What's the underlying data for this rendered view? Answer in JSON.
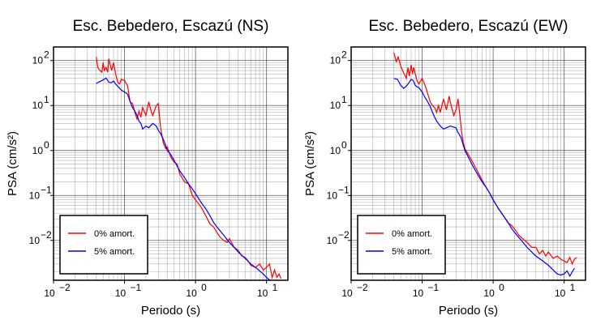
{
  "chart_data": [
    {
      "type": "line",
      "title": "Esc. Bebedero, Escazú (NS)",
      "xlabel": "Periodo (s)",
      "ylabel": "PSA (cm/s²)",
      "xscale": "log",
      "yscale": "log",
      "xlim": [
        0.01,
        20
      ],
      "ylim": [
        0.0013,
        200
      ],
      "grid": true,
      "legend": {
        "placement": "lower-left",
        "entries": [
          "0% amort.",
          "5% amort."
        ]
      },
      "x_ticks": [
        "10",
        "10",
        "10",
        "10"
      ],
      "x_tick_exponents": [
        "−2",
        "−1",
        "0",
        "1"
      ],
      "y_ticks": [
        "10",
        "10",
        "10",
        "10",
        "10"
      ],
      "y_tick_exponents": [
        "−2",
        "−1",
        "0",
        "1",
        "2"
      ],
      "series": [
        {
          "name": "0% amort.",
          "color": "#ff0000",
          "points": [
            [
              0.04,
              120
            ],
            [
              0.042,
              70
            ],
            [
              0.045,
              60
            ],
            [
              0.048,
              55
            ],
            [
              0.05,
              90
            ],
            [
              0.052,
              60
            ],
            [
              0.055,
              70
            ],
            [
              0.058,
              55
            ],
            [
              0.06,
              110
            ],
            [
              0.063,
              80
            ],
            [
              0.066,
              60
            ],
            [
              0.07,
              90
            ],
            [
              0.075,
              50
            ],
            [
              0.08,
              33
            ],
            [
              0.085,
              30
            ],
            [
              0.09,
              38
            ],
            [
              0.1,
              36
            ],
            [
              0.11,
              28
            ],
            [
              0.12,
              12
            ],
            [
              0.13,
              11
            ],
            [
              0.14,
              7
            ],
            [
              0.15,
              5
            ],
            [
              0.16,
              7.5
            ],
            [
              0.17,
              5.5
            ],
            [
              0.18,
              9
            ],
            [
              0.2,
              6
            ],
            [
              0.22,
              12
            ],
            [
              0.24,
              7
            ],
            [
              0.25,
              6
            ],
            [
              0.28,
              10
            ],
            [
              0.3,
              11
            ],
            [
              0.32,
              3.5
            ],
            [
              0.35,
              1.5
            ],
            [
              0.38,
              1.1
            ],
            [
              0.4,
              1.2
            ],
            [
              0.45,
              0.7
            ],
            [
              0.5,
              0.55
            ],
            [
              0.55,
              0.5
            ],
            [
              0.6,
              0.3
            ],
            [
              0.7,
              0.2
            ],
            [
              0.8,
              0.18
            ],
            [
              0.9,
              0.1
            ],
            [
              1.0,
              0.08
            ],
            [
              1.2,
              0.055
            ],
            [
              1.4,
              0.035
            ],
            [
              1.6,
              0.023
            ],
            [
              1.8,
              0.02
            ],
            [
              2.0,
              0.015
            ],
            [
              2.2,
              0.012
            ],
            [
              2.5,
              0.01
            ],
            [
              2.8,
              0.009
            ],
            [
              3.0,
              0.011
            ],
            [
              3.5,
              0.007
            ],
            [
              4.0,
              0.006
            ],
            [
              4.5,
              0.0045
            ],
            [
              5.0,
              0.0042
            ],
            [
              5.5,
              0.0035
            ],
            [
              6.0,
              0.0028
            ],
            [
              7.0,
              0.0025
            ],
            [
              8.0,
              0.003
            ],
            [
              9.0,
              0.0022
            ],
            [
              10.0,
              0.0025
            ],
            [
              11.0,
              0.003
            ],
            [
              12.0,
              0.0015
            ],
            [
              13.0,
              0.0022
            ],
            [
              14.0,
              0.0015
            ],
            [
              15.0,
              0.0018
            ],
            [
              16.0,
              0.0014
            ]
          ]
        },
        {
          "name": "5% amort.",
          "color": "#0000ff",
          "points": [
            [
              0.04,
              31
            ],
            [
              0.045,
              34
            ],
            [
              0.05,
              37
            ],
            [
              0.055,
              41
            ],
            [
              0.06,
              33
            ],
            [
              0.065,
              32
            ],
            [
              0.07,
              35
            ],
            [
              0.075,
              30
            ],
            [
              0.08,
              27
            ],
            [
              0.09,
              22
            ],
            [
              0.1,
              20
            ],
            [
              0.11,
              18
            ],
            [
              0.12,
              12
            ],
            [
              0.13,
              9
            ],
            [
              0.14,
              7.5
            ],
            [
              0.15,
              6
            ],
            [
              0.16,
              4.5
            ],
            [
              0.17,
              4
            ],
            [
              0.18,
              3
            ],
            [
              0.2,
              3.5
            ],
            [
              0.22,
              3.2
            ],
            [
              0.25,
              4
            ],
            [
              0.28,
              3.5
            ],
            [
              0.3,
              2.8
            ],
            [
              0.32,
              2.4
            ],
            [
              0.35,
              1.8
            ],
            [
              0.38,
              1.3
            ],
            [
              0.4,
              1.0
            ],
            [
              0.45,
              0.8
            ],
            [
              0.5,
              0.6
            ],
            [
              0.55,
              0.45
            ],
            [
              0.6,
              0.35
            ],
            [
              0.7,
              0.25
            ],
            [
              0.8,
              0.18
            ],
            [
              0.9,
              0.14
            ],
            [
              1.0,
              0.11
            ],
            [
              1.2,
              0.07
            ],
            [
              1.4,
              0.05
            ],
            [
              1.6,
              0.035
            ],
            [
              1.8,
              0.025
            ],
            [
              2.0,
              0.02
            ],
            [
              2.5,
              0.013
            ],
            [
              3.0,
              0.009
            ],
            [
              3.5,
              0.007
            ],
            [
              4.0,
              0.0055
            ],
            [
              5.0,
              0.004
            ],
            [
              6.0,
              0.003
            ],
            [
              7.0,
              0.0025
            ],
            [
              8.0,
              0.0021
            ],
            [
              9.0,
              0.0018
            ],
            [
              10.0,
              0.0015
            ],
            [
              12.0,
              0.0012
            ],
            [
              14.0,
              0.001
            ]
          ]
        }
      ]
    },
    {
      "type": "line",
      "title": "Esc. Bebedero, Escazú (EW)",
      "xlabel": "Periodo (s)",
      "ylabel": "PSA (cm/s²)",
      "xscale": "log",
      "yscale": "log",
      "xlim": [
        0.01,
        20
      ],
      "ylim": [
        0.0013,
        200
      ],
      "grid": true,
      "legend": {
        "placement": "lower-left",
        "entries": [
          "0% amort.",
          "5% amort."
        ]
      },
      "x_ticks": [
        "10",
        "10",
        "10",
        "10"
      ],
      "x_tick_exponents": [
        "−2",
        "−1",
        "0",
        "1"
      ],
      "y_ticks": [
        "10",
        "10",
        "10",
        "10",
        "10"
      ],
      "y_tick_exponents": [
        "−2",
        "−1",
        "0",
        "1",
        "2"
      ],
      "series": [
        {
          "name": "0% amort.",
          "color": "#ff0000",
          "points": [
            [
              0.04,
              150
            ],
            [
              0.043,
              95
            ],
            [
              0.046,
              120
            ],
            [
              0.05,
              75
            ],
            [
              0.053,
              60
            ],
            [
              0.056,
              50
            ],
            [
              0.06,
              40
            ],
            [
              0.063,
              70
            ],
            [
              0.066,
              45
            ],
            [
              0.07,
              80
            ],
            [
              0.073,
              50
            ],
            [
              0.076,
              70
            ],
            [
              0.08,
              50
            ],
            [
              0.085,
              35
            ],
            [
              0.09,
              30
            ],
            [
              0.1,
              40
            ],
            [
              0.11,
              28
            ],
            [
              0.12,
              18
            ],
            [
              0.13,
              12
            ],
            [
              0.14,
              10
            ],
            [
              0.15,
              9
            ],
            [
              0.16,
              7
            ],
            [
              0.17,
              10
            ],
            [
              0.18,
              7
            ],
            [
              0.2,
              14
            ],
            [
              0.22,
              8
            ],
            [
              0.24,
              16
            ],
            [
              0.26,
              9
            ],
            [
              0.28,
              6
            ],
            [
              0.3,
              8
            ],
            [
              0.32,
              14
            ],
            [
              0.34,
              6
            ],
            [
              0.36,
              2.5
            ],
            [
              0.38,
              1.5
            ],
            [
              0.4,
              1.1
            ],
            [
              0.45,
              0.8
            ],
            [
              0.5,
              0.6
            ],
            [
              0.55,
              0.45
            ],
            [
              0.6,
              0.35
            ],
            [
              0.7,
              0.22
            ],
            [
              0.8,
              0.15
            ],
            [
              0.9,
              0.11
            ],
            [
              1.0,
              0.08
            ],
            [
              1.2,
              0.05
            ],
            [
              1.4,
              0.035
            ],
            [
              1.6,
              0.025
            ],
            [
              1.8,
              0.022
            ],
            [
              2.0,
              0.018
            ],
            [
              2.3,
              0.013
            ],
            [
              2.6,
              0.011
            ],
            [
              3.0,
              0.009
            ],
            [
              3.5,
              0.007
            ],
            [
              4.0,
              0.007
            ],
            [
              4.5,
              0.005
            ],
            [
              5.0,
              0.006
            ],
            [
              5.5,
              0.0045
            ],
            [
              6.0,
              0.0055
            ],
            [
              7.0,
              0.004
            ],
            [
              8.0,
              0.0045
            ],
            [
              9.0,
              0.0038
            ],
            [
              10.0,
              0.0035
            ],
            [
              11.0,
              0.0032
            ],
            [
              12.0,
              0.0042
            ],
            [
              13.0,
              0.003
            ],
            [
              14.0,
              0.0038
            ],
            [
              15.0,
              0.0042
            ]
          ]
        },
        {
          "name": "5% amort.",
          "color": "#0000ff",
          "points": [
            [
              0.04,
              40
            ],
            [
              0.045,
              38
            ],
            [
              0.05,
              28
            ],
            [
              0.055,
              24
            ],
            [
              0.06,
              27
            ],
            [
              0.065,
              32
            ],
            [
              0.07,
              38
            ],
            [
              0.075,
              36
            ],
            [
              0.08,
              28
            ],
            [
              0.085,
              26
            ],
            [
              0.09,
              25
            ],
            [
              0.1,
              20
            ],
            [
              0.11,
              15
            ],
            [
              0.12,
              12
            ],
            [
              0.13,
              9.5
            ],
            [
              0.14,
              7
            ],
            [
              0.15,
              5.5
            ],
            [
              0.16,
              4.5
            ],
            [
              0.18,
              3.5
            ],
            [
              0.2,
              3
            ],
            [
              0.22,
              3.2
            ],
            [
              0.25,
              3.5
            ],
            [
              0.28,
              3.3
            ],
            [
              0.3,
              3.2
            ],
            [
              0.32,
              2.5
            ],
            [
              0.35,
              2
            ],
            [
              0.38,
              1.3
            ],
            [
              0.4,
              1.0
            ],
            [
              0.45,
              0.7
            ],
            [
              0.5,
              0.5
            ],
            [
              0.55,
              0.38
            ],
            [
              0.6,
              0.3
            ],
            [
              0.7,
              0.2
            ],
            [
              0.8,
              0.15
            ],
            [
              0.9,
              0.11
            ],
            [
              1.0,
              0.08
            ],
            [
              1.2,
              0.05
            ],
            [
              1.4,
              0.035
            ],
            [
              1.6,
              0.026
            ],
            [
              1.8,
              0.019
            ],
            [
              2.0,
              0.015
            ],
            [
              2.5,
              0.01
            ],
            [
              3.0,
              0.007
            ],
            [
              3.5,
              0.0055
            ],
            [
              4.0,
              0.0045
            ],
            [
              5.0,
              0.0035
            ],
            [
              6.0,
              0.0028
            ],
            [
              7.0,
              0.0022
            ],
            [
              8.0,
              0.0018
            ],
            [
              9.0,
              0.0017
            ],
            [
              10.0,
              0.0018
            ],
            [
              11.0,
              0.0021
            ],
            [
              12.0,
              0.0016
            ],
            [
              13.0,
              0.002
            ],
            [
              14.0,
              0.0024
            ]
          ]
        }
      ]
    }
  ]
}
